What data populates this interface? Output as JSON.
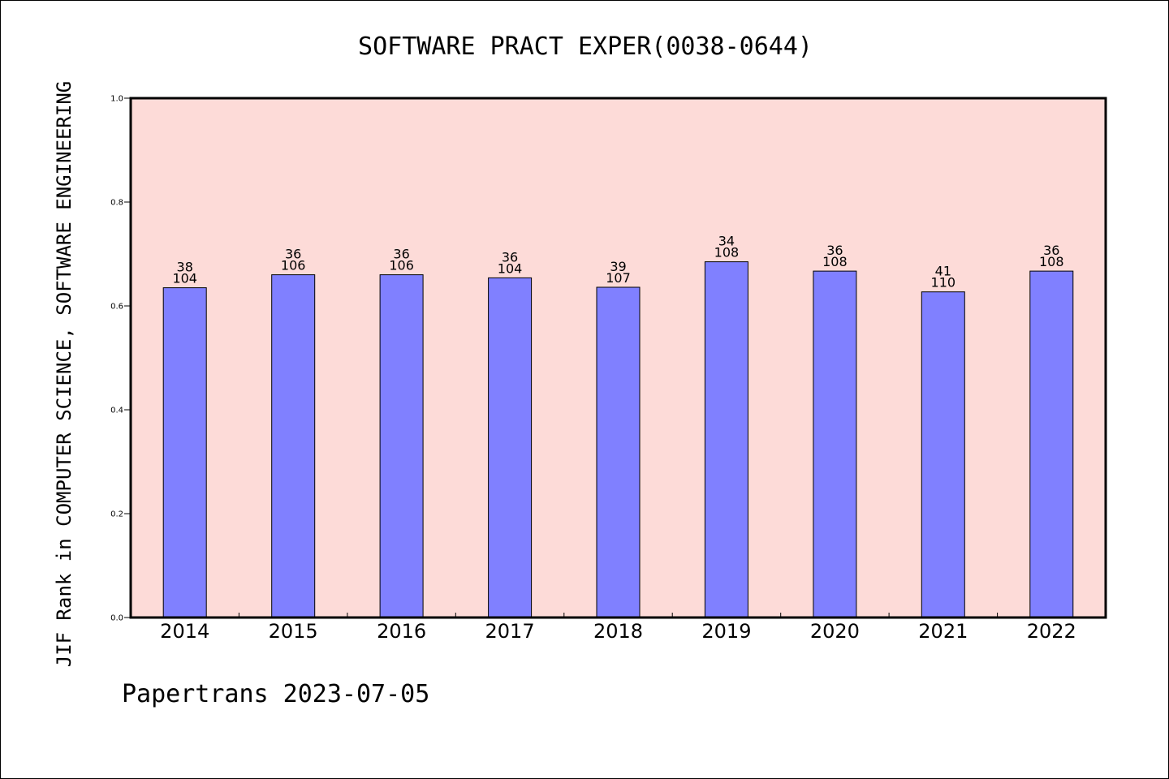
{
  "chart_data": {
    "type": "bar",
    "title": "SOFTWARE PRACT EXPER(0038-0644)",
    "xlabel": "",
    "ylabel": "JIF Rank in COMPUTER SCIENCE, SOFTWARE ENGINEERING",
    "ylim": [
      0,
      1.0
    ],
    "yticks": [
      "0.0",
      "0.2",
      "0.4",
      "0.6",
      "0.8",
      "1.0"
    ],
    "categories": [
      "2014",
      "2015",
      "2016",
      "2017",
      "2018",
      "2019",
      "2020",
      "2021",
      "2022"
    ],
    "series": [
      {
        "values": [
          0.635,
          0.66,
          0.66,
          0.654,
          0.636,
          0.685,
          0.667,
          0.627,
          0.667
        ],
        "color": "#8080ff"
      }
    ],
    "bar_labels": [
      {
        "rank": "38",
        "total": "104"
      },
      {
        "rank": "36",
        "total": "106"
      },
      {
        "rank": "36",
        "total": "106"
      },
      {
        "rank": "36",
        "total": "104"
      },
      {
        "rank": "39",
        "total": "107"
      },
      {
        "rank": "34",
        "total": "108"
      },
      {
        "rank": "36",
        "total": "108"
      },
      {
        "rank": "41",
        "total": "110"
      },
      {
        "rank": "36",
        "total": "108"
      }
    ],
    "plot_background": "#fddbd8",
    "grid": false,
    "legend": "none"
  },
  "footer": "Papertrans 2023-07-05"
}
